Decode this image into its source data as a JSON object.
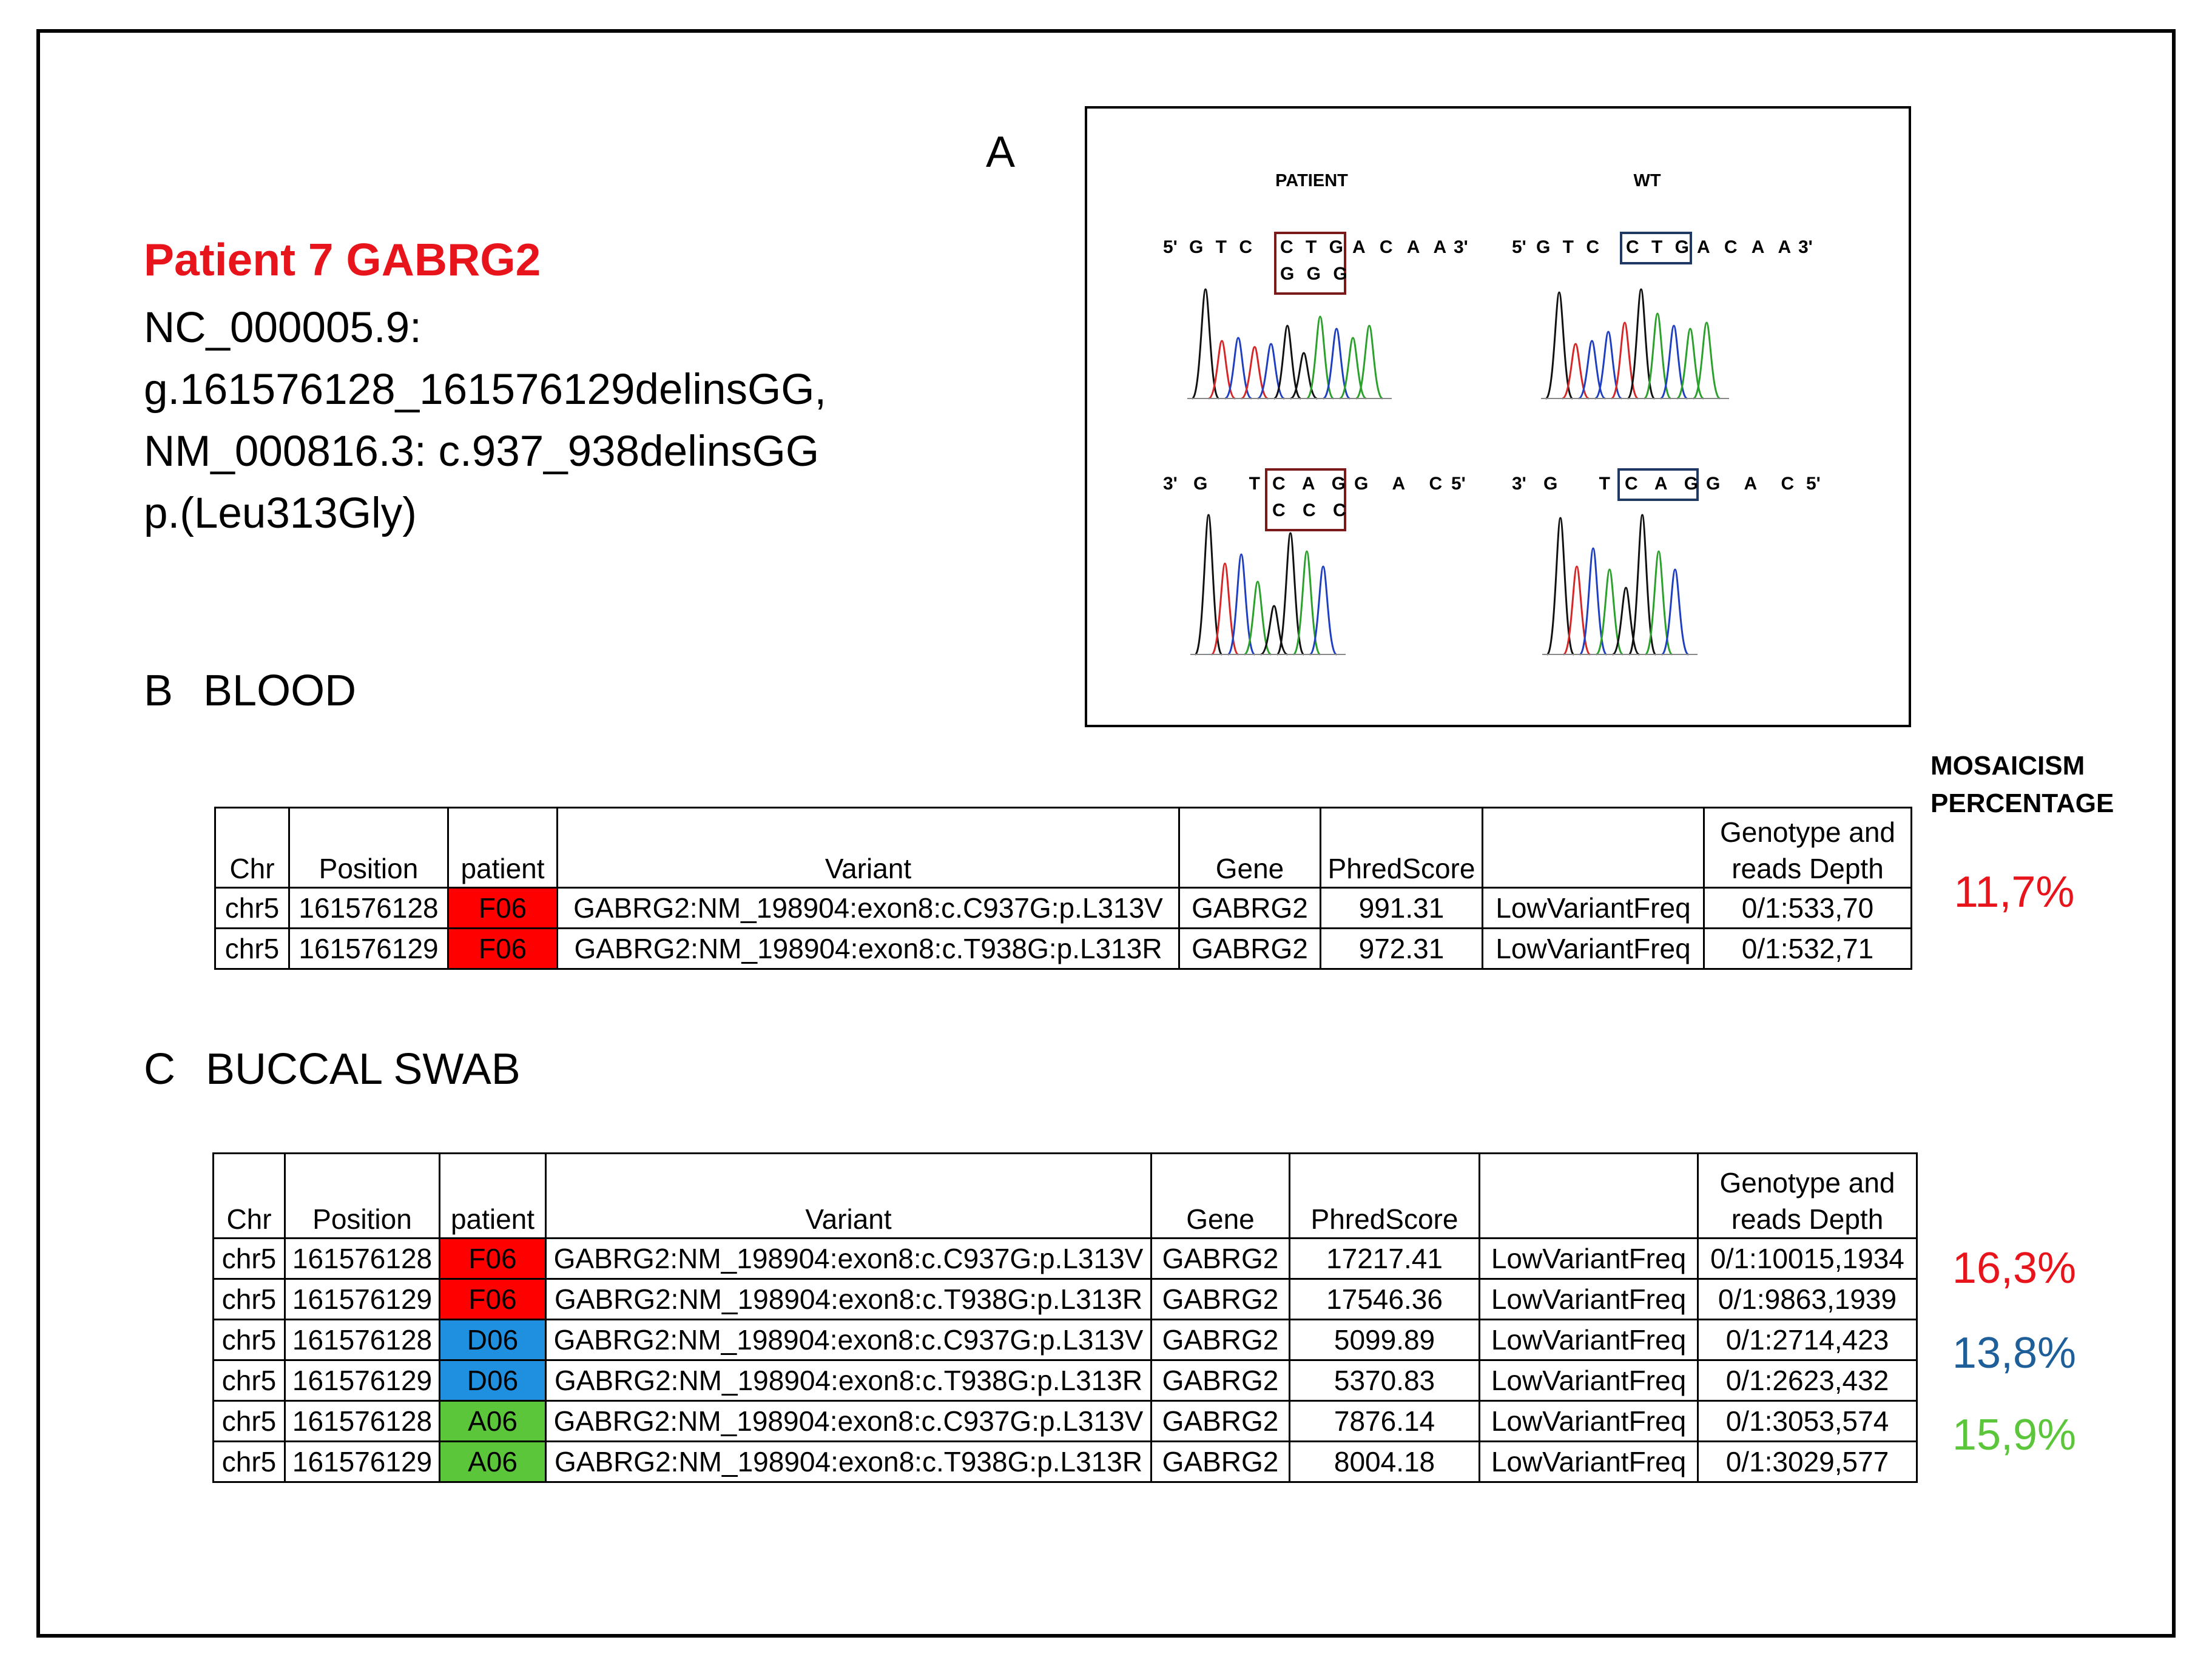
{
  "patient_title": "Patient 7 GABRG2",
  "hgvs_lines": [
    "NC_000005.9:",
    "g.161576128_161576129delinsGG,",
    "NM_000816.3: c.937_938delinsGG",
    "p.(Leu313Gly)"
  ],
  "panel_a": {
    "letter": "A",
    "patient_label": "PATIENT",
    "wt_label": "WT",
    "patient_forward": {
      "prime5": "5'",
      "prefix": "G T C",
      "boxed": "C T G",
      "alt": "G G G",
      "suffix": "A C A A",
      "prime3": "3'"
    },
    "wt_forward": {
      "prime5": "5'",
      "prefix": "G T C",
      "boxed": "C T G",
      "suffix": "A C A A",
      "prime3": "3'"
    },
    "patient_reverse": {
      "prime3": "3'",
      "prefix": "G T",
      "boxed": "C A G",
      "alt": "C C C",
      "suffix": "G A C",
      "prime5": "5'"
    },
    "wt_reverse": {
      "prime3": "3'",
      "prefix": "G T",
      "boxed": "C A G",
      "suffix": "G A C",
      "prime5": "5'"
    },
    "colors": {
      "box_patient": "#7a1a1a",
      "box_wt": "#1f3864",
      "trace_a": "#2ca02c",
      "trace_c": "#1f3fbf",
      "trace_g": "#111111",
      "trace_t": "#d62728"
    }
  },
  "section_b": {
    "letter": "B",
    "label": "BLOOD"
  },
  "section_c": {
    "letter": "C",
    "label": "BUCCAL SWAB"
  },
  "mosaicism_header": [
    "MOSAICISM",
    "PERCENTAGE"
  ],
  "table_headers": {
    "chr": "Chr",
    "position": "Position",
    "patient": "patient",
    "variant": "Variant",
    "gene": "Gene",
    "phred": "PhredScore",
    "filter": "",
    "genotype_1": "Genotype and",
    "genotype_2": "reads Depth"
  },
  "blood_rows": [
    {
      "chr": "chr5",
      "position": "161576128",
      "patient": "F06",
      "patient_color": "#ff0000",
      "variant": "GABRG2:NM_198904:exon8:c.C937G:p.L313V",
      "gene": "GABRG2",
      "phred": "991.31",
      "filter": "LowVariantFreq",
      "genotype": "0/1:533,70"
    },
    {
      "chr": "chr5",
      "position": "161576129",
      "patient": "F06",
      "patient_color": "#ff0000",
      "variant": "GABRG2:NM_198904:exon8:c.T938G:p.L313R",
      "gene": "GABRG2",
      "phred": "972.31",
      "filter": "LowVariantFreq",
      "genotype": "0/1:532,71"
    }
  ],
  "buccal_rows": [
    {
      "chr": "chr5",
      "position": "161576128",
      "patient": "F06",
      "patient_color": "#ff0000",
      "variant": "GABRG2:NM_198904:exon8:c.C937G:p.L313V",
      "gene": "GABRG2",
      "phred": "17217.41",
      "filter": "LowVariantFreq",
      "genotype": "0/1:10015,1934"
    },
    {
      "chr": "chr5",
      "position": "161576129",
      "patient": "F06",
      "patient_color": "#ff0000",
      "variant": "GABRG2:NM_198904:exon8:c.T938G:p.L313R",
      "gene": "GABRG2",
      "phred": "17546.36",
      "filter": "LowVariantFreq",
      "genotype": "0/1:9863,1939"
    },
    {
      "chr": "chr5",
      "position": "161576128",
      "patient": "D06",
      "patient_color": "#1f8fe0",
      "variant": "GABRG2:NM_198904:exon8:c.C937G:p.L313V",
      "gene": "GABRG2",
      "phred": "5099.89",
      "filter": "LowVariantFreq",
      "genotype": "0/1:2714,423"
    },
    {
      "chr": "chr5",
      "position": "161576129",
      "patient": "D06",
      "patient_color": "#1f8fe0",
      "variant": "GABRG2:NM_198904:exon8:c.T938G:p.L313R",
      "gene": "GABRG2",
      "phred": "5370.83",
      "filter": "LowVariantFreq",
      "genotype": "0/1:2623,432"
    },
    {
      "chr": "chr5",
      "position": "161576128",
      "patient": "A06",
      "patient_color": "#5cc63a",
      "variant": "GABRG2:NM_198904:exon8:c.C937G:p.L313V",
      "gene": "GABRG2",
      "phred": "7876.14",
      "filter": "LowVariantFreq",
      "genotype": "0/1:3053,574"
    },
    {
      "chr": "chr5",
      "position": "161576129",
      "patient": "A06",
      "patient_color": "#5cc63a",
      "variant": "GABRG2:NM_198904:exon8:c.T938G:p.L313R",
      "gene": "GABRG2",
      "phred": "8004.18",
      "filter": "LowVariantFreq",
      "genotype": "0/1:3029,577"
    }
  ],
  "mosaicism": {
    "blood": {
      "value": "11,7%",
      "color": "#e8141c"
    },
    "buccal_f06": {
      "value": "16,3%",
      "color": "#e8141c"
    },
    "buccal_d06": {
      "value": "13,8%",
      "color": "#1f5f99"
    },
    "buccal_a06": {
      "value": "15,9%",
      "color": "#5cc63a"
    }
  }
}
